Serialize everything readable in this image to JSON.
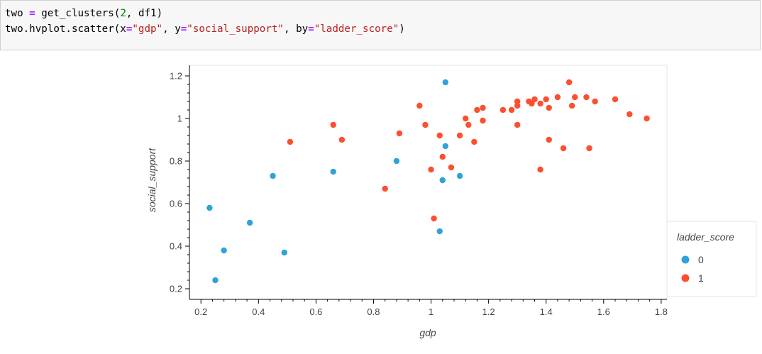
{
  "cell": {
    "line1": {
      "var": "two",
      "op": "=",
      "call": "get_clusters(",
      "num": "2",
      "rest": ", df1)"
    },
    "line2": {
      "prefix": "two.hvplot.scatter(",
      "x_key": "x",
      "x_val": "\"gdp\"",
      "y_key": "y",
      "y_val": "\"social_support\"",
      "by_key": "by",
      "by_val": "\"ladder_score\"",
      "eq": "=",
      "sep": ", ",
      "close": ")"
    }
  },
  "chart_data": {
    "type": "scatter",
    "xlabel": "gdp",
    "ylabel": "social_support",
    "xlim": [
      0.16,
      1.82
    ],
    "ylim": [
      0.15,
      1.25
    ],
    "xticks": [
      "0.2",
      "0.4",
      "0.6",
      "0.8",
      "1",
      "1.2",
      "1.4",
      "1.6",
      "1.8"
    ],
    "yticks": [
      "0.2",
      "0.4",
      "0.6",
      "0.8",
      "1",
      "1.2"
    ],
    "legend_title": "ladder_score",
    "legend_position": "right",
    "colors": {
      "0": "#30a2da",
      "1": "#fc4f30"
    },
    "series": [
      {
        "name": "0",
        "color": "#30a2da",
        "points": [
          [
            0.23,
            0.58
          ],
          [
            0.25,
            0.24
          ],
          [
            0.28,
            0.38
          ],
          [
            0.37,
            0.51
          ],
          [
            0.45,
            0.73
          ],
          [
            0.49,
            0.37
          ],
          [
            0.66,
            0.75
          ],
          [
            0.88,
            0.8
          ],
          [
            1.03,
            0.47
          ],
          [
            1.04,
            0.71
          ],
          [
            1.05,
            0.87
          ],
          [
            1.05,
            1.17
          ],
          [
            1.1,
            0.73
          ]
        ]
      },
      {
        "name": "1",
        "color": "#fc4f30",
        "points": [
          [
            0.51,
            0.89
          ],
          [
            0.66,
            0.97
          ],
          [
            0.69,
            0.9
          ],
          [
            0.84,
            0.67
          ],
          [
            0.89,
            0.93
          ],
          [
            0.96,
            1.06
          ],
          [
            0.98,
            0.97
          ],
          [
            1.0,
            0.76
          ],
          [
            1.01,
            0.53
          ],
          [
            1.03,
            0.92
          ],
          [
            1.04,
            0.82
          ],
          [
            1.07,
            0.77
          ],
          [
            1.1,
            0.92
          ],
          [
            1.12,
            1.0
          ],
          [
            1.13,
            0.97
          ],
          [
            1.15,
            0.89
          ],
          [
            1.16,
            1.04
          ],
          [
            1.18,
            1.05
          ],
          [
            1.18,
            0.99
          ],
          [
            1.25,
            1.04
          ],
          [
            1.28,
            1.04
          ],
          [
            1.3,
            1.08
          ],
          [
            1.3,
            1.06
          ],
          [
            1.3,
            0.97
          ],
          [
            1.34,
            1.08
          ],
          [
            1.35,
            1.07
          ],
          [
            1.36,
            1.09
          ],
          [
            1.38,
            1.07
          ],
          [
            1.38,
            0.76
          ],
          [
            1.4,
            1.09
          ],
          [
            1.41,
            1.05
          ],
          [
            1.41,
            0.9
          ],
          [
            1.44,
            1.1
          ],
          [
            1.46,
            0.86
          ],
          [
            1.48,
            1.17
          ],
          [
            1.49,
            1.06
          ],
          [
            1.5,
            1.1
          ],
          [
            1.54,
            1.1
          ],
          [
            1.55,
            0.86
          ],
          [
            1.57,
            1.08
          ],
          [
            1.64,
            1.09
          ],
          [
            1.69,
            1.02
          ],
          [
            1.75,
            1.0
          ]
        ]
      }
    ]
  }
}
